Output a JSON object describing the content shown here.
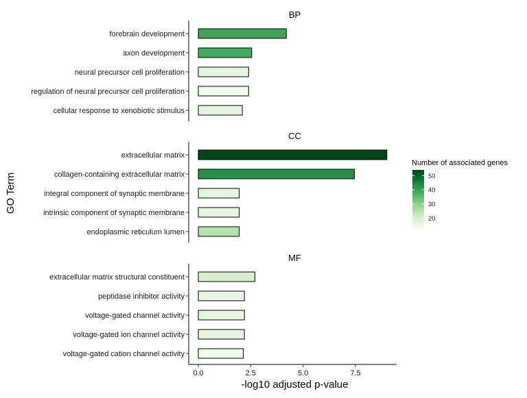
{
  "chart_data": {
    "type": "bar",
    "orientation": "horizontal",
    "xlabel": "-log10 adjusted p-value",
    "ylabel": "GO Term",
    "xlim": [
      0,
      9.4
    ],
    "xticks": [
      0,
      2.5,
      5,
      7.5
    ],
    "xtick_labels": [
      "0.0",
      "2.5",
      "5.0",
      "7.5"
    ],
    "grid": false,
    "legend": {
      "title": "Number of associated genes",
      "placement": "right",
      "range": [
        12,
        54
      ],
      "ticks": [
        20,
        30,
        40,
        50
      ],
      "colors": [
        "#f7fcf5",
        "#e5f5e0",
        "#c7e9c0",
        "#a1d99b",
        "#74c476",
        "#41ab5d",
        "#238b45",
        "#006d2c",
        "#00441b"
      ]
    },
    "panels": [
      {
        "title": "BP",
        "bars": [
          {
            "term": "forebrain development",
            "value": 4.2,
            "genes": 39
          },
          {
            "term": "axon development",
            "value": 2.55,
            "genes": 38
          },
          {
            "term": "neural precursor cell proliferation",
            "value": 2.4,
            "genes": 17
          },
          {
            "term": "regulation of neural precursor cell proliferation",
            "value": 2.4,
            "genes": 14
          },
          {
            "term": "cellular response to xenobiotic stimulus",
            "value": 2.1,
            "genes": 17
          }
        ]
      },
      {
        "title": "CC",
        "bars": [
          {
            "term": "extracellular matrix",
            "value": 9.0,
            "genes": 54
          },
          {
            "term": "collagen-containing extracellular matrix",
            "value": 7.45,
            "genes": 43
          },
          {
            "term": "integral component of synaptic membrane",
            "value": 1.95,
            "genes": 17
          },
          {
            "term": "intrinsic component of synaptic membrane",
            "value": 1.95,
            "genes": 17
          },
          {
            "term": "endoplasmic reticulum lumen",
            "value": 1.95,
            "genes": 25
          }
        ]
      },
      {
        "title": "MF",
        "bars": [
          {
            "term": "extracellular matrix structural constituent",
            "value": 2.7,
            "genes": 20
          },
          {
            "term": "peptidase inhibitor activity",
            "value": 2.2,
            "genes": 16
          },
          {
            "term": "voltage-gated channel activity",
            "value": 2.2,
            "genes": 17
          },
          {
            "term": "voltage-gated ion channel activity",
            "value": 2.2,
            "genes": 17
          },
          {
            "term": "voltage-gated cation channel activity",
            "value": 2.15,
            "genes": 14
          }
        ]
      }
    ]
  }
}
